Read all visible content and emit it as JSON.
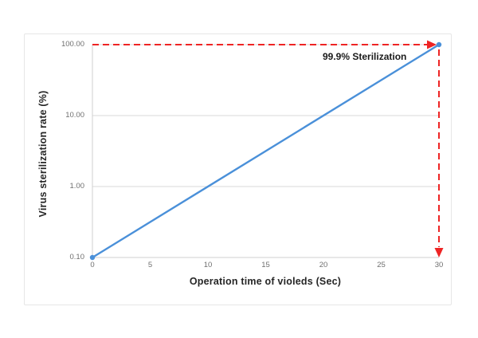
{
  "chart_data": {
    "type": "line",
    "title": "",
    "xlabel": "Operation time of violeds (Sec)",
    "ylabel": "Virus sterilization rate (%)",
    "x_scale": "linear",
    "y_scale": "log",
    "xlim": [
      0,
      30
    ],
    "ylim": [
      0.1,
      100
    ],
    "x_ticks": [
      "0",
      "5",
      "10",
      "15",
      "20",
      "25",
      "30"
    ],
    "y_ticks": [
      "100.00",
      "10.00",
      "1.00",
      "0.10"
    ],
    "y_tick_values": [
      100,
      10,
      1,
      0.1
    ],
    "grid": true,
    "legend": "none",
    "series": [
      {
        "name": "Virus sterilization rate",
        "color": "#4a90d9",
        "marker": "circle",
        "x": [
          0,
          30
        ],
        "y": [
          0.1,
          100
        ]
      }
    ],
    "annotations": [
      {
        "text": "99.9% Sterilization",
        "bold": true
      }
    ],
    "reference_lines": [
      {
        "type": "horizontal",
        "y": 100,
        "x_from": 0,
        "x_to": 30,
        "style": "dashed",
        "arrow": "right"
      },
      {
        "type": "vertical",
        "x": 30,
        "y_from": 100,
        "y_to": 0.1,
        "style": "dashed",
        "arrow": "down"
      }
    ]
  },
  "colors": {
    "series_blue": "#4a90d9",
    "reference_red": "#ee2424",
    "gridline": "#d9d9d9",
    "axis_line": "#cfcfcf",
    "tick_text": "#6f6f6f",
    "label_text": "#262626",
    "chart_border": "#e6e6e6",
    "background": "#ffffff"
  }
}
